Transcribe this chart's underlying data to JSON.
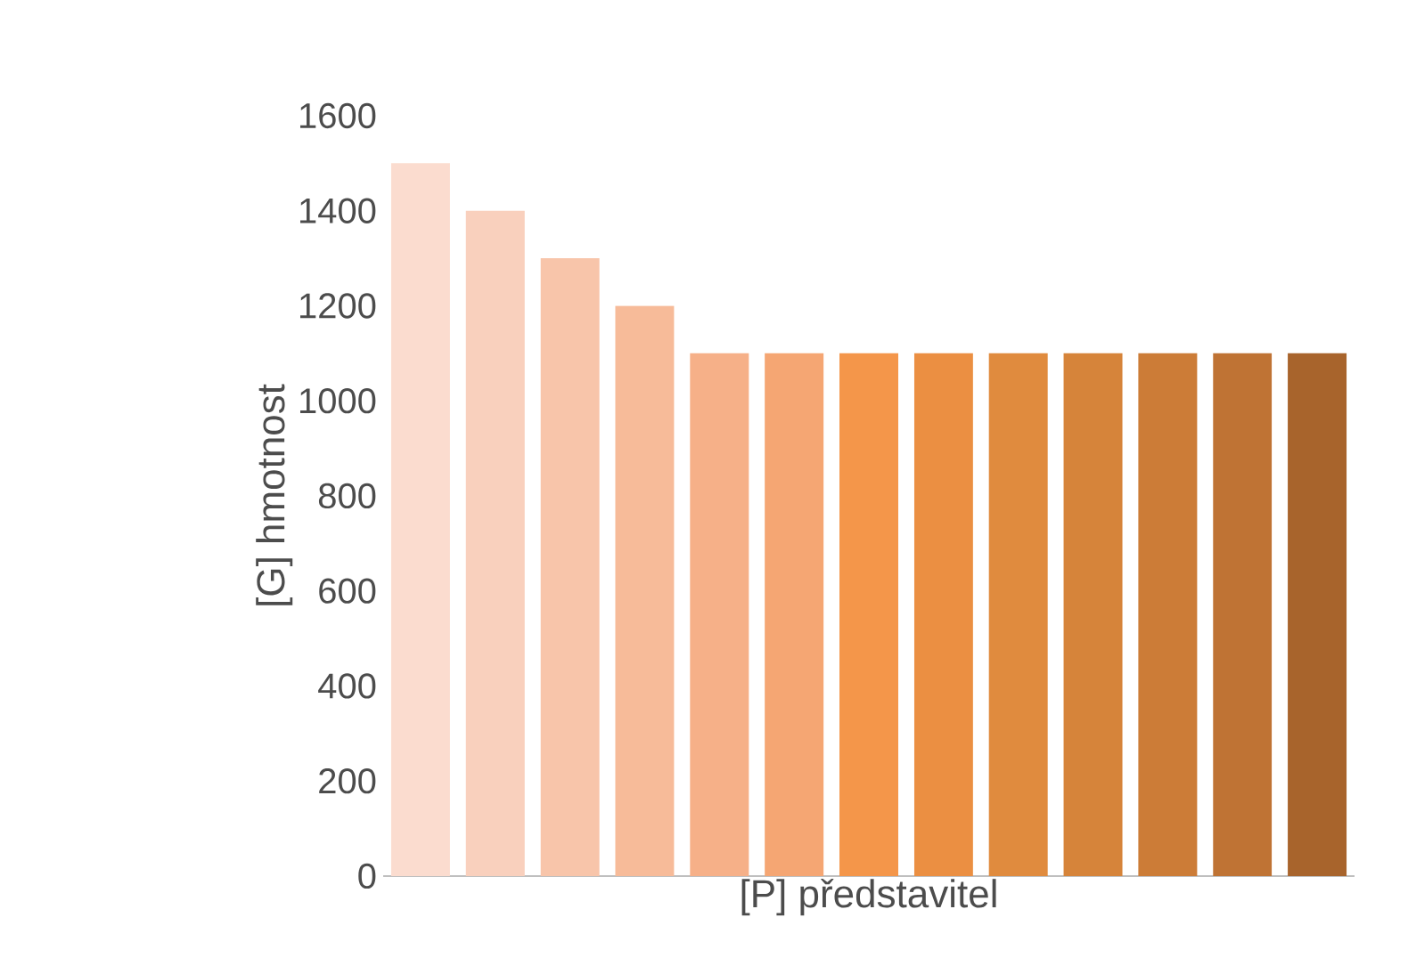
{
  "chart_data": {
    "type": "bar",
    "xlabel": "[P] představitel",
    "ylabel": "[G] hmotnost",
    "categories": [
      null,
      null,
      null,
      null,
      null,
      null,
      null,
      null,
      null,
      null,
      null,
      null,
      null
    ],
    "values": [
      1500,
      1400,
      1300,
      1200,
      1100,
      1100,
      1100,
      1100,
      1100,
      1100,
      1100,
      1100,
      1100
    ],
    "colors": [
      "#fbdccf",
      "#f9d0bd",
      "#f8c5aa",
      "#f7bb99",
      "#f6b088",
      "#f5a673",
      "#f4964a",
      "#eb8f42",
      "#e08b3e",
      "#d6843a",
      "#cc7c37",
      "#bf7334",
      "#a8642c"
    ],
    "ylim": [
      0,
      1600
    ],
    "yticks": [
      0,
      200,
      400,
      600,
      800,
      1000,
      1200,
      1400,
      1600
    ],
    "grid": false
  }
}
